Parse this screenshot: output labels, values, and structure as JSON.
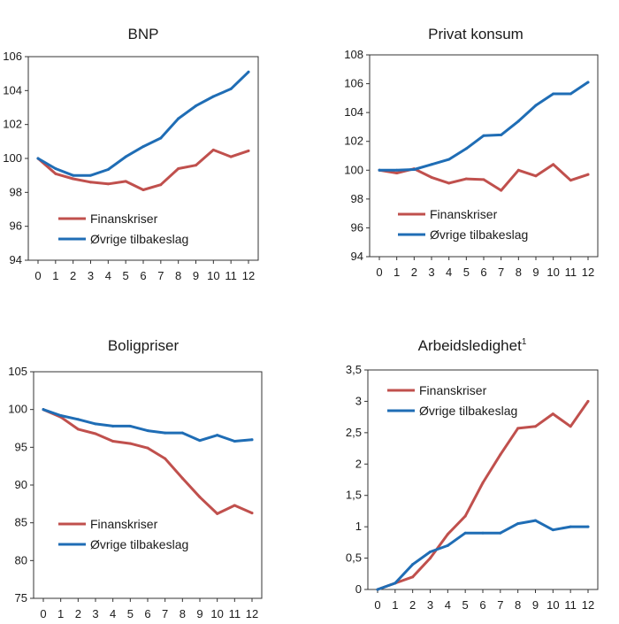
{
  "colors": {
    "finanskriser": "#c0504d",
    "ovrige": "#1f6db5",
    "axis": "#333333"
  },
  "legend": {
    "series1": "Finanskriser",
    "series2": "Øvrige tilbakeslag"
  },
  "chart_data": [
    {
      "type": "line",
      "title": "BNP",
      "x": [
        0,
        1,
        2,
        3,
        4,
        5,
        6,
        7,
        8,
        9,
        10,
        11,
        12
      ],
      "ylim": [
        94,
        106
      ],
      "yticks": [
        "94",
        "96",
        "98",
        "100",
        "102",
        "104",
        "106"
      ],
      "legend_position": "bottom-left",
      "series": [
        {
          "name": "Finanskriser",
          "values": [
            100.0,
            99.1,
            98.8,
            98.6,
            98.5,
            98.65,
            98.15,
            98.45,
            99.4,
            99.6,
            100.5,
            100.1,
            100.45
          ]
        },
        {
          "name": "Øvrige tilbakeslag",
          "values": [
            100.0,
            99.4,
            99.0,
            99.0,
            99.35,
            100.1,
            100.7,
            101.2,
            102.35,
            103.1,
            103.65,
            104.1,
            105.1
          ]
        }
      ]
    },
    {
      "type": "line",
      "title": "Privat konsum",
      "x": [
        0,
        1,
        2,
        3,
        4,
        5,
        6,
        7,
        8,
        9,
        10,
        11,
        12
      ],
      "ylim": [
        94,
        108
      ],
      "yticks": [
        "94",
        "96",
        "98",
        "100",
        "102",
        "104",
        "106",
        "108"
      ],
      "legend_position": "bottom-left",
      "series": [
        {
          "name": "Finanskriser",
          "values": [
            100.0,
            99.8,
            100.1,
            99.5,
            99.1,
            99.4,
            99.35,
            98.6,
            100.0,
            99.6,
            100.4,
            99.3,
            99.7
          ]
        },
        {
          "name": "Øvrige tilbakeslag",
          "values": [
            100.0,
            100.0,
            100.05,
            100.4,
            100.75,
            101.5,
            102.4,
            102.45,
            103.4,
            104.5,
            105.3,
            105.3,
            106.1
          ]
        }
      ]
    },
    {
      "type": "line",
      "title": "Boligpriser",
      "x": [
        0,
        1,
        2,
        3,
        4,
        5,
        6,
        7,
        8,
        9,
        10,
        11,
        12
      ],
      "ylim": [
        75,
        105
      ],
      "yticks": [
        "75",
        "80",
        "85",
        "90",
        "95",
        "100",
        "105"
      ],
      "legend_position": "bottom-left",
      "series": [
        {
          "name": "Finanskriser",
          "values": [
            100.0,
            99.0,
            97.4,
            96.8,
            95.8,
            95.5,
            94.9,
            93.5,
            90.9,
            88.4,
            86.2,
            87.3,
            86.3
          ]
        },
        {
          "name": "Øvrige tilbakeslag",
          "values": [
            100.0,
            99.2,
            98.7,
            98.1,
            97.8,
            97.8,
            97.2,
            96.9,
            96.9,
            95.9,
            96.6,
            95.8,
            96.0
          ]
        }
      ]
    },
    {
      "type": "line",
      "title": "Arbeidsledighet",
      "title_sup": "1",
      "x": [
        0,
        1,
        2,
        3,
        4,
        5,
        6,
        7,
        8,
        9,
        10,
        11,
        12
      ],
      "ylim": [
        0,
        3.5
      ],
      "yticks": [
        "0",
        "0,5",
        "1",
        "1,5",
        "2",
        "2,5",
        "3",
        "3,5"
      ],
      "legend_position": "top-left",
      "series": [
        {
          "name": "Finanskriser",
          "values": [
            0.0,
            0.1,
            0.2,
            0.5,
            0.88,
            1.17,
            1.7,
            2.15,
            2.57,
            2.6,
            2.8,
            2.6,
            3.0
          ]
        },
        {
          "name": "Øvrige tilbakeslag",
          "values": [
            0.0,
            0.1,
            0.4,
            0.6,
            0.7,
            0.9,
            0.9,
            0.9,
            1.05,
            1.1,
            0.95,
            1.0,
            1.0
          ]
        }
      ]
    }
  ]
}
